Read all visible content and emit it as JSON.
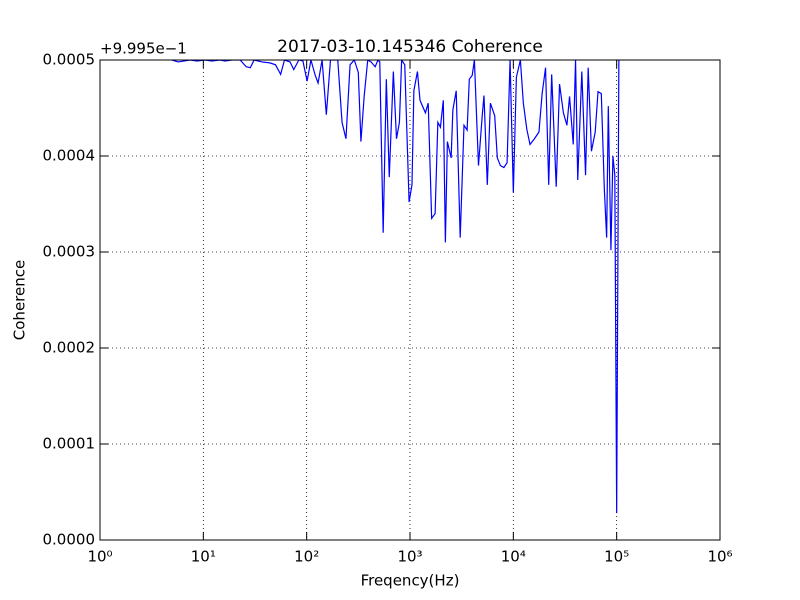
{
  "chart_data": {
    "type": "line",
    "title": "2017-03-10.145346 Coherence",
    "x_label": "Freqency(Hz)",
    "y_label": "Coherence",
    "y_offset_label": "+9.995e−1",
    "x_scale": "log",
    "grid": true,
    "xlim": [
      1,
      1000000
    ],
    "ylim": [
      0,
      0.0005
    ],
    "xticks": [
      {
        "value": 1,
        "label": "10⁰"
      },
      {
        "value": 10,
        "label": "10¹"
      },
      {
        "value": 100,
        "label": "10²"
      },
      {
        "value": 1000,
        "label": "10³"
      },
      {
        "value": 10000,
        "label": "10⁴"
      },
      {
        "value": 100000,
        "label": "10⁵"
      },
      {
        "value": 1000000,
        "label": "10⁶"
      }
    ],
    "yticks": [
      {
        "value": 0,
        "label": "0.0000"
      },
      0.0001,
      0.0002,
      0.0003,
      0.0004,
      0.0005
    ],
    "series": [
      {
        "color": "#0000ff",
        "x": [
          4.97,
          5.7,
          6.6,
          7.4,
          8.7,
          10.4,
          12.1,
          14.5,
          16.2,
          18.9,
          22.7,
          26,
          28.5,
          31,
          37,
          44,
          50,
          56,
          61,
          69,
          75,
          84,
          92,
          101,
          110,
          121,
          129,
          141,
          155,
          170,
          186,
          200,
          220,
          240,
          263,
          289,
          316,
          335,
          360,
          390,
          420,
          460,
          490,
          510,
          550,
          590,
          630,
          690,
          740,
          790,
          830,
          890,
          980,
          1045,
          1090,
          1180,
          1250,
          1410,
          1500,
          1620,
          1750,
          1860,
          1970,
          2100,
          2200,
          2300,
          2500,
          2600,
          2800,
          3060,
          3330,
          3570,
          3750,
          4000,
          4200,
          4600,
          5000,
          5200,
          5600,
          6000,
          6600,
          7000,
          7500,
          8100,
          8700,
          9300,
          10000,
          10700,
          11700,
          12500,
          13500,
          14500,
          16000,
          17700,
          19000,
          20500,
          22000,
          23500,
          26000,
          28000,
          30500,
          33000,
          35000,
          38000,
          40000,
          42000,
          46000,
          50000,
          53000,
          57000,
          62000,
          66000,
          71000,
          76000,
          80000,
          83000,
          88000,
          92000,
          96000,
          100000,
          105000
        ],
        "values": [
          0.0005,
          0.000498,
          0.000499,
          0.0005,
          0.000499,
          0.0005,
          0.000499,
          0.0005,
          0.000499,
          0.0005,
          0.0005,
          0.000493,
          0.000492,
          0.0005,
          0.000498,
          0.000497,
          0.000495,
          0.000485,
          0.0005,
          0.000498,
          0.00049,
          0.0005,
          0.000499,
          0.000478,
          0.0005,
          0.000484,
          0.000476,
          0.0005,
          0.000443,
          0.0005,
          0.0005,
          0.0005,
          0.000435,
          0.000418,
          0.000495,
          0.0005,
          0.000487,
          0.000415,
          0.000462,
          0.0005,
          0.000498,
          0.000493,
          0.0005,
          0.000498,
          0.00032,
          0.00048,
          0.000378,
          0.000488,
          0.000418,
          0.000435,
          0.0005,
          0.000495,
          0.000352,
          0.00037,
          0.000468,
          0.000488,
          0.000458,
          0.000445,
          0.000455,
          0.000335,
          0.00034,
          0.000435,
          0.00043,
          0.000458,
          0.00031,
          0.000415,
          0.000398,
          0.000448,
          0.000468,
          0.000315,
          0.000432,
          0.000427,
          0.00048,
          0.000484,
          0.0005,
          0.00039,
          0.000442,
          0.000463,
          0.00037,
          0.000455,
          0.000442,
          0.000398,
          0.00039,
          0.000388,
          0.000393,
          0.0005,
          0.000362,
          0.000482,
          0.0005,
          0.000455,
          0.000428,
          0.000412,
          0.000418,
          0.000425,
          0.000465,
          0.000492,
          0.00037,
          0.000485,
          0.000368,
          0.000475,
          0.000445,
          0.000432,
          0.000462,
          0.000412,
          0.0005,
          0.000375,
          0.000488,
          0.00038,
          0.000492,
          0.000405,
          0.000425,
          0.000467,
          0.000465,
          0.000365,
          0.000315,
          0.000452,
          0.000302,
          0.0004,
          0.00038,
          2.8e-05,
          0.0005
        ]
      }
    ]
  }
}
